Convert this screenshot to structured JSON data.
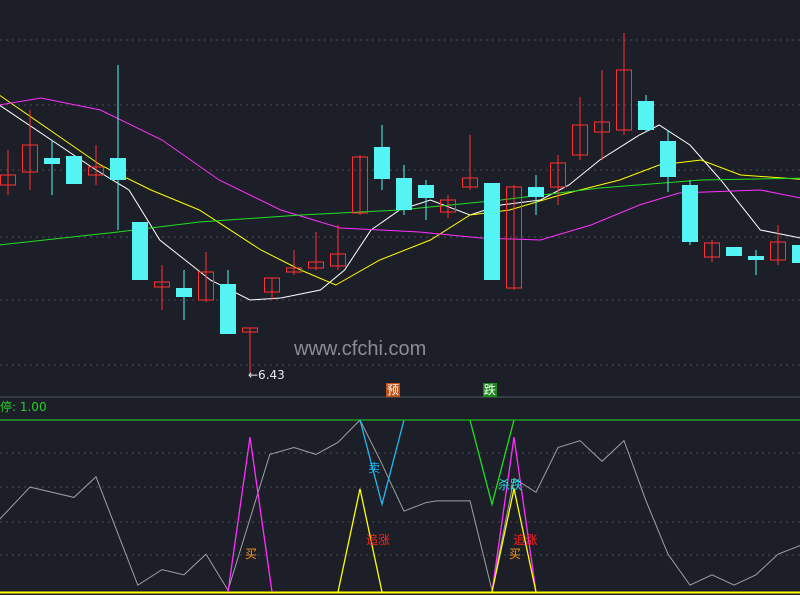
{
  "watermark": "www.cfchi.com",
  "indicator_label": "停: 1.00",
  "colors": {
    "background": "#1c1f27",
    "up": "#ff3030",
    "down": "#54f4f4",
    "ma1": "#ffffff",
    "ma2": "#ffff00",
    "ma3": "#ff30ff",
    "ma4": "#22dd22"
  },
  "chart_data": [
    {
      "type": "candlestick",
      "low_annotation": "←6.43",
      "candles": [
        [
          8.33,
          8.43,
          8.68,
          8.23
        ],
        [
          8.46,
          8.73,
          9.08,
          8.28
        ],
        [
          8.6,
          8.54,
          8.78,
          8.23
        ],
        [
          8.62,
          8.34,
          8.62,
          8.34
        ],
        [
          8.43,
          8.51,
          8.73,
          8.33
        ],
        [
          8.6,
          8.38,
          9.53,
          7.88
        ],
        [
          7.96,
          7.38,
          7.96,
          7.38
        ],
        [
          7.31,
          7.36,
          7.53,
          7.08
        ],
        [
          7.3,
          7.21,
          7.48,
          6.98
        ],
        [
          7.18,
          7.46,
          7.66,
          7.16
        ],
        [
          7.34,
          6.84,
          7.48,
          6.84
        ],
        [
          6.86,
          6.9,
          6.9,
          6.43
        ],
        [
          7.26,
          7.4,
          7.4,
          7.18
        ],
        [
          7.46,
          7.5,
          7.68,
          7.43
        ],
        [
          7.5,
          7.56,
          7.86,
          7.48
        ],
        [
          7.52,
          7.64,
          7.93,
          7.48
        ],
        [
          8.05,
          8.61,
          8.63,
          8.03
        ],
        [
          8.71,
          8.39,
          8.93,
          8.28
        ],
        [
          8.4,
          8.08,
          8.53,
          8.03
        ],
        [
          8.33,
          8.2,
          8.38,
          7.98
        ],
        [
          8.06,
          8.18,
          8.23,
          8.0
        ],
        [
          8.31,
          8.4,
          8.83,
          8.28
        ],
        [
          8.35,
          7.38,
          8.35,
          7.38
        ],
        [
          7.3,
          8.31,
          8.33,
          7.28
        ],
        [
          8.31,
          8.21,
          8.43,
          8.03
        ],
        [
          8.31,
          8.55,
          8.63,
          8.13
        ],
        [
          8.63,
          8.93,
          9.21,
          8.58
        ],
        [
          8.86,
          8.96,
          9.48,
          8.58
        ],
        [
          8.88,
          9.48,
          9.85,
          8.83
        ],
        [
          9.17,
          8.88,
          9.23,
          8.86
        ],
        [
          8.77,
          8.41,
          8.88,
          8.26
        ],
        [
          8.33,
          7.76,
          8.38,
          7.73
        ],
        [
          7.61,
          7.75,
          7.78,
          7.56
        ],
        [
          7.71,
          7.62,
          7.71,
          7.62
        ],
        [
          7.62,
          7.58,
          7.68,
          7.43
        ],
        [
          7.58,
          7.76,
          7.93,
          7.53
        ],
        [
          7.73,
          7.55,
          7.73,
          7.55
        ]
      ],
      "lines": [
        {
          "color": "#ffffff",
          "points": [
            [
              -0.4,
              9.13
            ],
            [
              4,
              8.48
            ],
            [
              5.5,
              8.28
            ],
            [
              6.9,
              7.78
            ],
            [
              9.2,
              7.38
            ],
            [
              11,
              7.18
            ],
            [
              12.4,
              7.2
            ],
            [
              14.2,
              7.28
            ],
            [
              15.3,
              7.48
            ],
            [
              16.5,
              7.88
            ],
            [
              17.8,
              8.08
            ],
            [
              19.2,
              8.18
            ],
            [
              21,
              8.03
            ],
            [
              22.4,
              8.13
            ],
            [
              24.2,
              8.18
            ],
            [
              25.5,
              8.33
            ],
            [
              26.9,
              8.58
            ],
            [
              28.7,
              8.83
            ],
            [
              29.6,
              8.93
            ],
            [
              31,
              8.73
            ],
            [
              32.4,
              8.38
            ],
            [
              34.2,
              7.88
            ],
            [
              36.5,
              7.78
            ]
          ]
        },
        {
          "color": "#ffff00",
          "points": [
            [
              -0.4,
              9.23
            ],
            [
              1.9,
              8.88
            ],
            [
              4.2,
              8.53
            ],
            [
              6.5,
              8.28
            ],
            [
              8.7,
              8.08
            ],
            [
              11.5,
              7.68
            ],
            [
              13.3,
              7.48
            ],
            [
              14.9,
              7.33
            ],
            [
              16.9,
              7.58
            ],
            [
              19.2,
              7.78
            ],
            [
              21,
              8.03
            ],
            [
              22.8,
              8.08
            ],
            [
              25.1,
              8.23
            ],
            [
              27.8,
              8.38
            ],
            [
              29.6,
              8.53
            ],
            [
              31.5,
              8.58
            ],
            [
              33.3,
              8.43
            ],
            [
              36.5,
              8.38
            ]
          ]
        },
        {
          "color": "#ff30ff",
          "points": [
            [
              -0.4,
              9.13
            ],
            [
              1.5,
              9.2
            ],
            [
              4.2,
              9.08
            ],
            [
              7,
              8.78
            ],
            [
              9.6,
              8.38
            ],
            [
              12.4,
              8.08
            ],
            [
              15.1,
              7.9
            ],
            [
              18.7,
              7.86
            ],
            [
              21.5,
              7.8
            ],
            [
              24.2,
              7.78
            ],
            [
              26.5,
              7.93
            ],
            [
              28.7,
              8.13
            ],
            [
              30.5,
              8.25
            ],
            [
              34.2,
              8.28
            ],
            [
              36.5,
              8.18
            ]
          ]
        },
        {
          "color": "#22dd22",
          "points": [
            [
              -0.4,
              7.73
            ],
            [
              5,
              7.86
            ],
            [
              8.7,
              7.96
            ],
            [
              13.3,
              8.03
            ],
            [
              17.8,
              8.08
            ],
            [
              22.4,
              8.18
            ],
            [
              26.9,
              8.3
            ],
            [
              31.5,
              8.38
            ],
            [
              36.5,
              8.4
            ]
          ]
        }
      ],
      "markers": [
        {
          "index": 17.5,
          "text": "预",
          "color": "#c0501a"
        },
        {
          "index": 21.9,
          "text": "跌",
          "color": "#1a8a1a"
        }
      ]
    },
    {
      "type": "line",
      "ylim": [
        0,
        100
      ],
      "gray": [
        [
          -0.4,
          42
        ],
        [
          1,
          61
        ],
        [
          2,
          58
        ],
        [
          3,
          55
        ],
        [
          4,
          67
        ],
        [
          5.9,
          4
        ],
        [
          7,
          13
        ],
        [
          8,
          10
        ],
        [
          9,
          22
        ],
        [
          10,
          1
        ],
        [
          11.9,
          80
        ],
        [
          13,
          84
        ],
        [
          14,
          80
        ],
        [
          15,
          87
        ],
        [
          16,
          100
        ],
        [
          16.9,
          77
        ],
        [
          18,
          47
        ],
        [
          19,
          52
        ],
        [
          19.5,
          53
        ],
        [
          21,
          53
        ],
        [
          22,
          1
        ],
        [
          23,
          66
        ],
        [
          24,
          58
        ],
        [
          25,
          84
        ],
        [
          26,
          88
        ],
        [
          27,
          76
        ],
        [
          28,
          88
        ],
        [
          29,
          53
        ],
        [
          30,
          22
        ],
        [
          31,
          4
        ],
        [
          32,
          10
        ],
        [
          33,
          4
        ],
        [
          34,
          10
        ],
        [
          35,
          22
        ],
        [
          36,
          27
        ]
      ],
      "signals": [
        {
          "color": "#ff30ff",
          "points": [
            [
              10,
              0
            ],
            [
              11,
              90
            ],
            [
              12,
              0
            ]
          ]
        },
        {
          "color": "#ff30ff",
          "points": [
            [
              22,
              0
            ],
            [
              23,
              90
            ],
            [
              24,
              0
            ]
          ]
        },
        {
          "color": "#ffff00",
          "points": [
            [
              15,
              0
            ],
            [
              16,
              60
            ],
            [
              17,
              0
            ]
          ]
        },
        {
          "color": "#ffff00",
          "points": [
            [
              22,
              0
            ],
            [
              23,
              60
            ],
            [
              24,
              0
            ]
          ]
        },
        {
          "color": "#22b8f0",
          "points": [
            [
              16,
              100
            ],
            [
              17,
              51
            ],
            [
              18,
              100
            ]
          ]
        },
        {
          "color": "#22dd22",
          "points": [
            [
              21,
              100
            ],
            [
              22,
              51
            ],
            [
              23,
              100
            ]
          ]
        }
      ],
      "labels": [
        {
          "index": 11,
          "value": 22,
          "text": "买",
          "color": "#ff9a20"
        },
        {
          "index": 16.6,
          "value": 72,
          "text": "卖",
          "color": "#22b8f0"
        },
        {
          "index": 16.5,
          "value": 30,
          "text": "追涨",
          "color": "#ff2020"
        },
        {
          "index": 22.5,
          "value": 62,
          "text": "杀跌",
          "color": "#22e0e0"
        },
        {
          "index": 23.2,
          "value": 30,
          "text": "追涨",
          "color": "#ff2020"
        },
        {
          "index": 23,
          "value": 22,
          "text": "买",
          "color": "#ff9a20"
        }
      ]
    }
  ]
}
